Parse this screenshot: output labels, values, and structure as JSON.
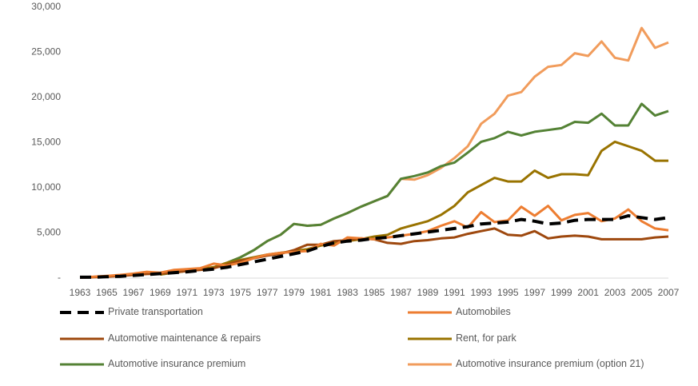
{
  "chart_data": {
    "type": "line",
    "categories": [
      1963,
      null,
      1965,
      null,
      1967,
      null,
      1969,
      null,
      1971,
      null,
      1973,
      null,
      1975,
      null,
      1977,
      null,
      1979,
      null,
      1981,
      null,
      1983,
      null,
      1985,
      null,
      1987,
      null,
      1989,
      null,
      1991,
      null,
      1993,
      null,
      1995,
      null,
      1997,
      null,
      1999,
      null,
      2001,
      null,
      2003,
      null,
      2005,
      null,
      2007
    ],
    "ylim": [
      0,
      30000
    ],
    "yticks": [
      {
        "value": 0,
        "label": "-"
      },
      {
        "value": 5000,
        "label": "5,000"
      },
      {
        "value": 10000,
        "label": "10,000"
      },
      {
        "value": 15000,
        "label": "15,000"
      },
      {
        "value": 20000,
        "label": "20,000"
      },
      {
        "value": 25000,
        "label": "25,000"
      },
      {
        "value": 30000,
        "label": "30,000"
      }
    ],
    "grid": false,
    "legend": "bottom",
    "series": [
      {
        "name": "Private transportation",
        "color": "#000000",
        "dashed": true,
        "values": [
          100,
          100,
          150,
          200,
          300,
          400,
          500,
          600,
          700,
          850,
          1000,
          1200,
          1500,
          1800,
          2100,
          2400,
          2700,
          3000,
          3500,
          3900,
          4100,
          4200,
          4400,
          4500,
          4700,
          4900,
          5100,
          5300,
          5500,
          5700,
          6000,
          6100,
          6200,
          6500,
          6300,
          6000,
          6100,
          6400,
          6500,
          6500,
          6500,
          6900,
          6700,
          6500,
          6700
        ]
      },
      {
        "name": "Automobiles",
        "color": "#ed7d31",
        "values": [
          100,
          150,
          250,
          350,
          500,
          700,
          600,
          900,
          1000,
          1100,
          1600,
          1400,
          1700,
          2200,
          2600,
          2800,
          2900,
          3000,
          3800,
          3600,
          4500,
          4400,
          4300,
          4500,
          4700,
          4900,
          5200,
          5800,
          6300,
          5600,
          7300,
          6200,
          6400,
          7900,
          6900,
          8000,
          6400,
          7000,
          7200,
          6300,
          6600,
          7600,
          6300,
          5500,
          5300
        ]
      },
      {
        "name": "Automotive maintenance & repairs",
        "color": "#9e480e",
        "values": [
          50,
          100,
          150,
          250,
          350,
          450,
          500,
          600,
          800,
          900,
          1100,
          1500,
          1900,
          2200,
          2500,
          2700,
          3100,
          3700,
          3700,
          4100,
          4200,
          4400,
          4300,
          3900,
          3800,
          4100,
          4200,
          4400,
          4500,
          4900,
          5200,
          5500,
          4800,
          4700,
          5200,
          4400,
          4600,
          4700,
          4600,
          4300,
          4300,
          4300,
          4300,
          4500,
          4600
        ]
      },
      {
        "name": "Rent, for park",
        "color": "#997300",
        "values": [
          null,
          null,
          null,
          null,
          null,
          null,
          400,
          700,
          900,
          1000,
          1200,
          1700,
          2000,
          2300,
          2600,
          2800,
          3000,
          3200,
          3600,
          3900,
          4100,
          4300,
          4600,
          4800,
          5500,
          5900,
          6300,
          7000,
          8000,
          9500,
          10300,
          11100,
          10700,
          10700,
          11900,
          11100,
          11500,
          11500,
          11400,
          14100,
          15100,
          14600,
          14100,
          13000,
          13000
        ]
      },
      {
        "name": "Automotive insurance premium",
        "color": "#548235",
        "values": [
          null,
          null,
          null,
          null,
          null,
          null,
          400,
          600,
          800,
          1000,
          1200,
          1700,
          2300,
          3100,
          4100,
          4800,
          6000,
          5800,
          5900,
          6600,
          7200,
          7900,
          8500,
          9100,
          11000,
          11300,
          11700,
          12400,
          12800,
          13900,
          15100,
          15500,
          16200,
          15800,
          16200,
          16400,
          16600,
          17300,
          17200,
          18200,
          16900,
          16900,
          19300,
          18000,
          18500
        ]
      },
      {
        "name": "Automotive insurance premium (option 21)",
        "color": "#f19c5c",
        "values": [
          null,
          null,
          null,
          null,
          null,
          null,
          400,
          600,
          800,
          1000,
          1200,
          1700,
          2300,
          3100,
          4100,
          4800,
          6000,
          5800,
          5900,
          6600,
          7200,
          7900,
          8500,
          9100,
          11000,
          10900,
          11400,
          12200,
          13300,
          14600,
          17100,
          18200,
          20200,
          20600,
          22300,
          23400,
          23600,
          24900,
          24600,
          26200,
          24400,
          24100,
          27700,
          25500,
          26100
        ]
      }
    ]
  }
}
